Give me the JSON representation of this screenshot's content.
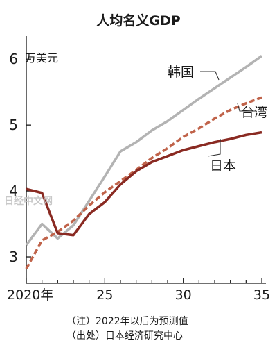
{
  "watermark": "日经中文网",
  "notes": [
    "（注）2022年以后为预测值",
    "（出处）日本经济研究中心"
  ],
  "colors": {
    "korea": "#b3b3b3",
    "taiwan": "#c0634a",
    "japan": "#8a2a22",
    "axis": "#1a1a1a"
  },
  "chart_data": {
    "type": "line",
    "title": "人均名义GDP",
    "ylabel": "万美元",
    "xlabel": "",
    "xlim": [
      2020,
      2035
    ],
    "ylim": [
      2.6,
      6.35
    ],
    "x_ticks": [
      {
        "value": 2020,
        "label": "2020年"
      },
      {
        "value": 2025,
        "label": "25"
      },
      {
        "value": 2030,
        "label": "30"
      },
      {
        "value": 2035,
        "label": "35"
      }
    ],
    "y_ticks": [
      {
        "value": 3,
        "label": "3"
      },
      {
        "value": 4,
        "label": "4"
      },
      {
        "value": 5,
        "label": "5"
      },
      {
        "value": 6,
        "label": "6"
      }
    ],
    "grid": false,
    "series": [
      {
        "key": "korea",
        "name": "韩国",
        "style": "solid",
        "x": [
          2020,
          2021,
          2022,
          2023,
          2024,
          2025,
          2026,
          2027,
          2028,
          2029,
          2030,
          2031,
          2032,
          2033,
          2034,
          2035
        ],
        "y": [
          3.18,
          3.5,
          3.28,
          3.48,
          3.85,
          4.22,
          4.6,
          4.74,
          4.92,
          5.06,
          5.23,
          5.4,
          5.56,
          5.72,
          5.88,
          6.05
        ]
      },
      {
        "key": "taiwan",
        "name": "台湾",
        "style": "dashed",
        "x": [
          2020,
          2021,
          2022,
          2023,
          2024,
          2025,
          2026,
          2027,
          2028,
          2029,
          2030,
          2031,
          2032,
          2033,
          2034,
          2035
        ],
        "y": [
          2.82,
          3.25,
          3.38,
          3.55,
          3.78,
          3.98,
          4.15,
          4.32,
          4.5,
          4.65,
          4.82,
          4.95,
          5.1,
          5.23,
          5.33,
          5.42
        ]
      },
      {
        "key": "japan",
        "name": "日本",
        "style": "solid",
        "x": [
          2020,
          2021,
          2022,
          2023,
          2024,
          2025,
          2026,
          2027,
          2028,
          2029,
          2030,
          2031,
          2032,
          2033,
          2034,
          2035
        ],
        "y": [
          4.03,
          3.97,
          3.36,
          3.33,
          3.65,
          3.83,
          4.1,
          4.3,
          4.44,
          4.53,
          4.62,
          4.68,
          4.74,
          4.79,
          4.85,
          4.89
        ]
      }
    ]
  }
}
